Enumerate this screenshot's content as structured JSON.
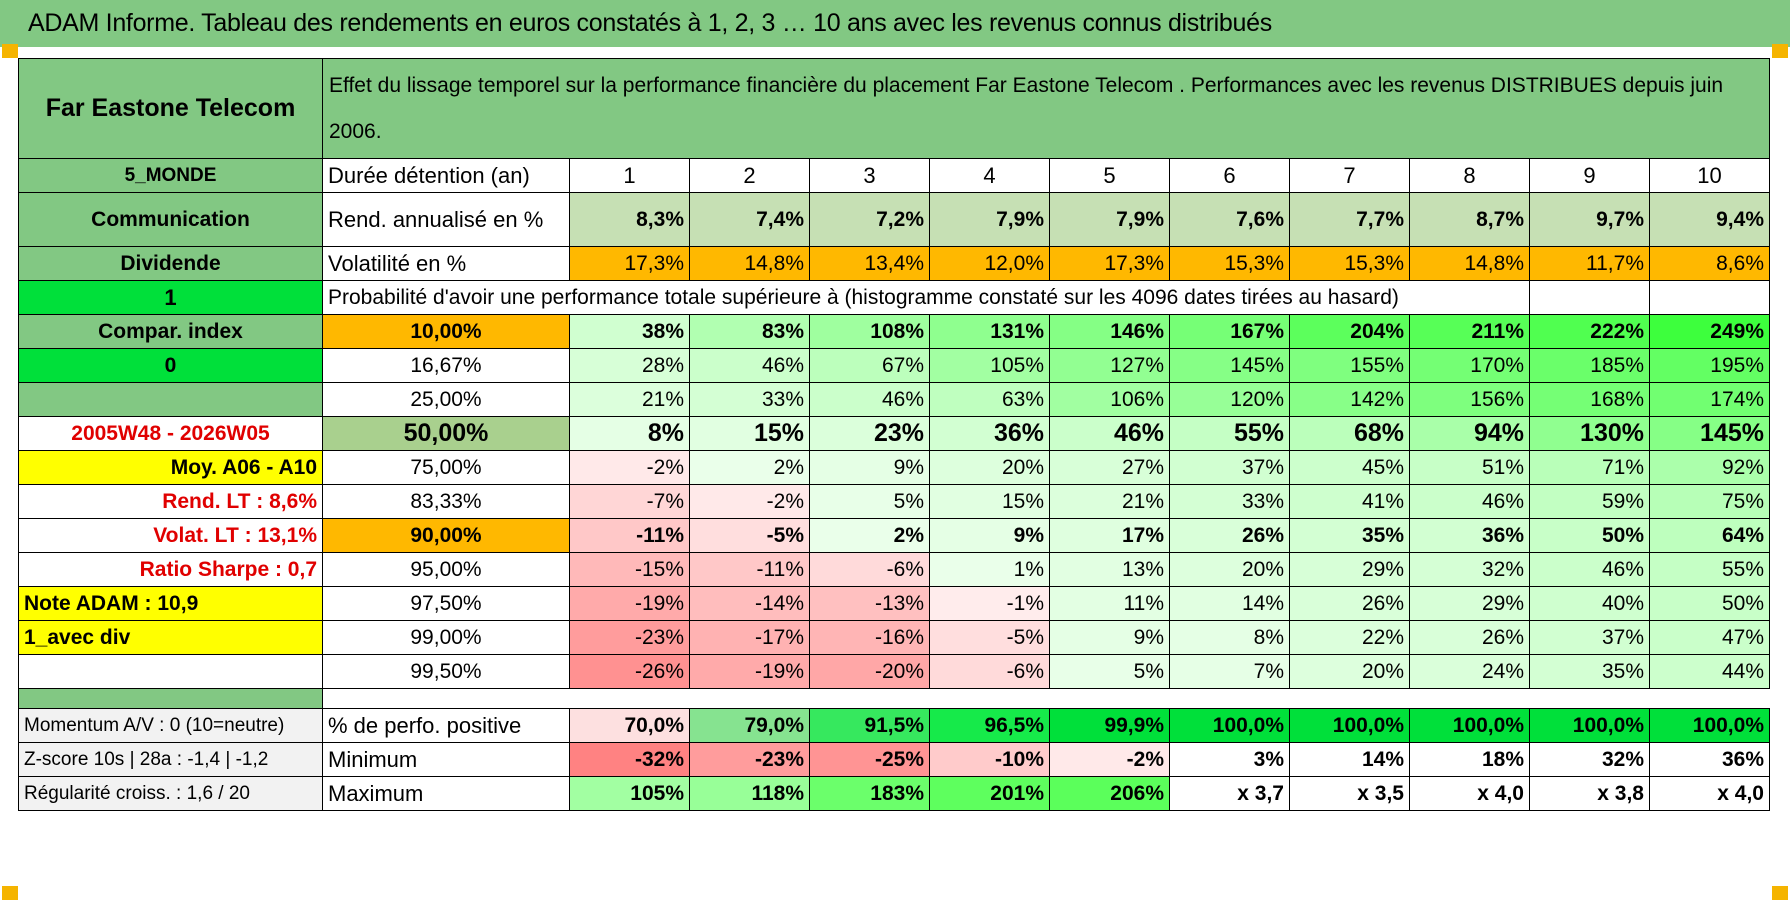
{
  "title": "ADAM Informe. Tableau des rendements en euros constatés à 1, 2, 3 … 10 ans avec les revenus connus distribués",
  "colors": {
    "header_green": "#82c883",
    "orange": "#ffb800",
    "yellow": "#ffff00",
    "bright_green": "#00e03a",
    "red_text": "#e00000"
  },
  "header": {
    "company": "Far Eastone Telecom",
    "description": "Effet du lissage temporel sur la performance financière du placement Far Eastone Telecom . Performances avec les revenus DISTRIBUES depuis juin 2006."
  },
  "left": {
    "region": "5_MONDE",
    "sector": "Communication",
    "type": "Dividende",
    "value1": "1",
    "compar": "Compar. index",
    "value0": "0",
    "period": "2005W48 - 2026W05",
    "moy": "Moy. A06 - A10",
    "rend_lt": "Rend. LT :    8,6%",
    "volat_lt": "Volat. LT :    13,1%",
    "sharpe": "Ratio Sharpe :     0,7",
    "note": "Note ADAM : 10,9",
    "avec_div": "1_avec div",
    "momentum": "Momentum A/V : 0 (10=neutre)",
    "zscore": "Z-score 10s | 28a : -1,4 | -1,2",
    "regularite": "Régularité croiss. : 1,6 / 20"
  },
  "labels": {
    "duree": "Durée détention (an)",
    "rend": "Rend. annualisé en %",
    "vol": "Volatilité en %",
    "proba": "Probabilité d'avoir une performance totale supérieure à (histogramme constaté sur les 4096 dates tirées au hasard)",
    "pct_pos": "% de perfo. positive",
    "minimum": "Minimum",
    "maximum": "Maximum"
  },
  "years": [
    "1",
    "2",
    "3",
    "4",
    "5",
    "6",
    "7",
    "8",
    "9",
    "10"
  ],
  "rend": [
    "8,3%",
    "7,4%",
    "7,2%",
    "7,9%",
    "7,9%",
    "7,6%",
    "7,7%",
    "8,7%",
    "9,7%",
    "9,4%"
  ],
  "vol": [
    "17,3%",
    "14,8%",
    "13,4%",
    "12,0%",
    "17,3%",
    "15,3%",
    "15,3%",
    "14,8%",
    "11,7%",
    "8,6%"
  ],
  "percentiles": [
    {
      "p": "10,00%",
      "v": [
        "38%",
        "83%",
        "108%",
        "131%",
        "146%",
        "167%",
        "204%",
        "211%",
        "222%",
        "249%"
      ],
      "bold": true
    },
    {
      "p": "16,67%",
      "v": [
        "28%",
        "46%",
        "67%",
        "105%",
        "127%",
        "145%",
        "155%",
        "170%",
        "185%",
        "195%"
      ]
    },
    {
      "p": "25,00%",
      "v": [
        "21%",
        "33%",
        "46%",
        "63%",
        "106%",
        "120%",
        "142%",
        "156%",
        "168%",
        "174%"
      ]
    },
    {
      "p": "50,00%",
      "v": [
        "8%",
        "15%",
        "23%",
        "36%",
        "46%",
        "55%",
        "68%",
        "94%",
        "130%",
        "145%"
      ],
      "big": true
    },
    {
      "p": "75,00%",
      "v": [
        "-2%",
        "2%",
        "9%",
        "20%",
        "27%",
        "37%",
        "45%",
        "51%",
        "71%",
        "92%"
      ]
    },
    {
      "p": "83,33%",
      "v": [
        "-7%",
        "-2%",
        "5%",
        "15%",
        "21%",
        "33%",
        "41%",
        "46%",
        "59%",
        "75%"
      ]
    },
    {
      "p": "90,00%",
      "v": [
        "-11%",
        "-5%",
        "2%",
        "9%",
        "17%",
        "26%",
        "35%",
        "36%",
        "50%",
        "64%"
      ],
      "bold": true
    },
    {
      "p": "95,00%",
      "v": [
        "-15%",
        "-11%",
        "-6%",
        "1%",
        "13%",
        "20%",
        "29%",
        "32%",
        "46%",
        "55%"
      ]
    },
    {
      "p": "97,50%",
      "v": [
        "-19%",
        "-14%",
        "-13%",
        "-1%",
        "11%",
        "14%",
        "26%",
        "29%",
        "40%",
        "50%"
      ]
    },
    {
      "p": "99,00%",
      "v": [
        "-23%",
        "-17%",
        "-16%",
        "-5%",
        "9%",
        "8%",
        "22%",
        "26%",
        "37%",
        "47%"
      ]
    },
    {
      "p": "99,50%",
      "v": [
        "-26%",
        "-19%",
        "-20%",
        "-6%",
        "5%",
        "7%",
        "20%",
        "24%",
        "35%",
        "44%"
      ]
    }
  ],
  "pct_pos": [
    "70,0%",
    "79,0%",
    "91,5%",
    "96,5%",
    "99,9%",
    "100,0%",
    "100,0%",
    "100,0%",
    "100,0%",
    "100,0%"
  ],
  "minimum": [
    "-32%",
    "-23%",
    "-25%",
    "-10%",
    "-2%",
    "3%",
    "14%",
    "18%",
    "32%",
    "36%"
  ],
  "maximum": [
    "105%",
    "118%",
    "183%",
    "201%",
    "206%",
    "x 3,7",
    "x 3,5",
    "x 4,0",
    "x 3,8",
    "x 4,0"
  ]
}
